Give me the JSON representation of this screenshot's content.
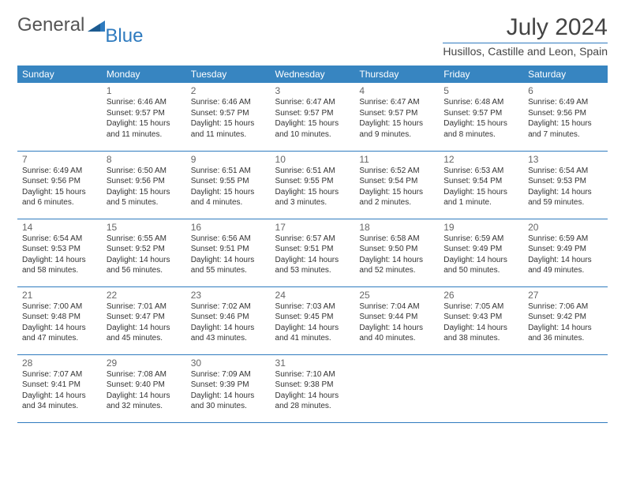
{
  "logo": {
    "general": "General",
    "blue": "Blue"
  },
  "title": "July 2024",
  "location": "Husillos, Castille and Leon, Spain",
  "colors": {
    "header_bg": "#3785c1",
    "header_fg": "#ffffff",
    "divider": "#2f7bbf",
    "text": "#333333",
    "daynum": "#666666",
    "logo_gray": "#555555",
    "logo_blue": "#2f7bbf"
  },
  "week_headers": [
    "Sunday",
    "Monday",
    "Tuesday",
    "Wednesday",
    "Thursday",
    "Friday",
    "Saturday"
  ],
  "weeks": [
    [
      null,
      {
        "n": "1",
        "sr": "6:46 AM",
        "ss": "9:57 PM",
        "dl": "15 hours and 11 minutes."
      },
      {
        "n": "2",
        "sr": "6:46 AM",
        "ss": "9:57 PM",
        "dl": "15 hours and 11 minutes."
      },
      {
        "n": "3",
        "sr": "6:47 AM",
        "ss": "9:57 PM",
        "dl": "15 hours and 10 minutes."
      },
      {
        "n": "4",
        "sr": "6:47 AM",
        "ss": "9:57 PM",
        "dl": "15 hours and 9 minutes."
      },
      {
        "n": "5",
        "sr": "6:48 AM",
        "ss": "9:57 PM",
        "dl": "15 hours and 8 minutes."
      },
      {
        "n": "6",
        "sr": "6:49 AM",
        "ss": "9:56 PM",
        "dl": "15 hours and 7 minutes."
      }
    ],
    [
      {
        "n": "7",
        "sr": "6:49 AM",
        "ss": "9:56 PM",
        "dl": "15 hours and 6 minutes."
      },
      {
        "n": "8",
        "sr": "6:50 AM",
        "ss": "9:56 PM",
        "dl": "15 hours and 5 minutes."
      },
      {
        "n": "9",
        "sr": "6:51 AM",
        "ss": "9:55 PM",
        "dl": "15 hours and 4 minutes."
      },
      {
        "n": "10",
        "sr": "6:51 AM",
        "ss": "9:55 PM",
        "dl": "15 hours and 3 minutes."
      },
      {
        "n": "11",
        "sr": "6:52 AM",
        "ss": "9:54 PM",
        "dl": "15 hours and 2 minutes."
      },
      {
        "n": "12",
        "sr": "6:53 AM",
        "ss": "9:54 PM",
        "dl": "15 hours and 1 minute."
      },
      {
        "n": "13",
        "sr": "6:54 AM",
        "ss": "9:53 PM",
        "dl": "14 hours and 59 minutes."
      }
    ],
    [
      {
        "n": "14",
        "sr": "6:54 AM",
        "ss": "9:53 PM",
        "dl": "14 hours and 58 minutes."
      },
      {
        "n": "15",
        "sr": "6:55 AM",
        "ss": "9:52 PM",
        "dl": "14 hours and 56 minutes."
      },
      {
        "n": "16",
        "sr": "6:56 AM",
        "ss": "9:51 PM",
        "dl": "14 hours and 55 minutes."
      },
      {
        "n": "17",
        "sr": "6:57 AM",
        "ss": "9:51 PM",
        "dl": "14 hours and 53 minutes."
      },
      {
        "n": "18",
        "sr": "6:58 AM",
        "ss": "9:50 PM",
        "dl": "14 hours and 52 minutes."
      },
      {
        "n": "19",
        "sr": "6:59 AM",
        "ss": "9:49 PM",
        "dl": "14 hours and 50 minutes."
      },
      {
        "n": "20",
        "sr": "6:59 AM",
        "ss": "9:49 PM",
        "dl": "14 hours and 49 minutes."
      }
    ],
    [
      {
        "n": "21",
        "sr": "7:00 AM",
        "ss": "9:48 PM",
        "dl": "14 hours and 47 minutes."
      },
      {
        "n": "22",
        "sr": "7:01 AM",
        "ss": "9:47 PM",
        "dl": "14 hours and 45 minutes."
      },
      {
        "n": "23",
        "sr": "7:02 AM",
        "ss": "9:46 PM",
        "dl": "14 hours and 43 minutes."
      },
      {
        "n": "24",
        "sr": "7:03 AM",
        "ss": "9:45 PM",
        "dl": "14 hours and 41 minutes."
      },
      {
        "n": "25",
        "sr": "7:04 AM",
        "ss": "9:44 PM",
        "dl": "14 hours and 40 minutes."
      },
      {
        "n": "26",
        "sr": "7:05 AM",
        "ss": "9:43 PM",
        "dl": "14 hours and 38 minutes."
      },
      {
        "n": "27",
        "sr": "7:06 AM",
        "ss": "9:42 PM",
        "dl": "14 hours and 36 minutes."
      }
    ],
    [
      {
        "n": "28",
        "sr": "7:07 AM",
        "ss": "9:41 PM",
        "dl": "14 hours and 34 minutes."
      },
      {
        "n": "29",
        "sr": "7:08 AM",
        "ss": "9:40 PM",
        "dl": "14 hours and 32 minutes."
      },
      {
        "n": "30",
        "sr": "7:09 AM",
        "ss": "9:39 PM",
        "dl": "14 hours and 30 minutes."
      },
      {
        "n": "31",
        "sr": "7:10 AM",
        "ss": "9:38 PM",
        "dl": "14 hours and 28 minutes."
      },
      null,
      null,
      null
    ]
  ],
  "labels": {
    "sunrise": "Sunrise:",
    "sunset": "Sunset:",
    "daylight": "Daylight:"
  }
}
